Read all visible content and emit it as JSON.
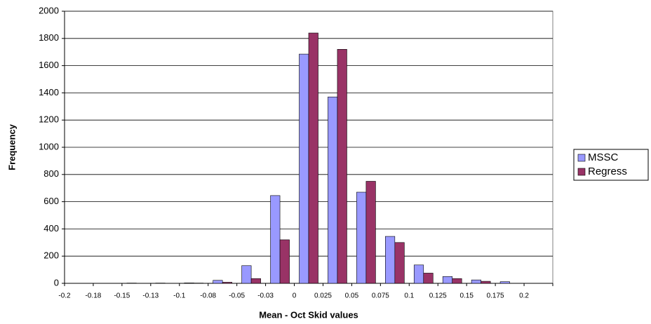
{
  "chart_data": {
    "type": "bar",
    "x_label": "Mean - Oct Skid values",
    "y_label": "Frequency",
    "categories": [
      "-0.2",
      "-0.18",
      "-0.15",
      "-0.13",
      "-0.1",
      "-0.08",
      "-0.05",
      "-0.03",
      "0",
      "0.025",
      "0.05",
      "0.075",
      "0.1",
      "0.125",
      "0.15",
      "0.175",
      "0.2"
    ],
    "series": [
      {
        "name": "MSSC",
        "color": "#9999ff",
        "values": [
          0,
          0,
          2,
          2,
          3,
          22,
          130,
          645,
          1685,
          1370,
          670,
          345,
          135,
          50,
          25,
          12,
          0
        ]
      },
      {
        "name": "Regress",
        "color": "#993366",
        "values": [
          0,
          0,
          0,
          0,
          2,
          8,
          35,
          320,
          1840,
          1720,
          750,
          300,
          75,
          35,
          15,
          0,
          0
        ]
      }
    ],
    "ylim": [
      0,
      2000
    ],
    "yticks": [
      0,
      200,
      400,
      600,
      800,
      1000,
      1200,
      1400,
      1600,
      1800,
      2000
    ],
    "grid": true,
    "legend": "right"
  }
}
